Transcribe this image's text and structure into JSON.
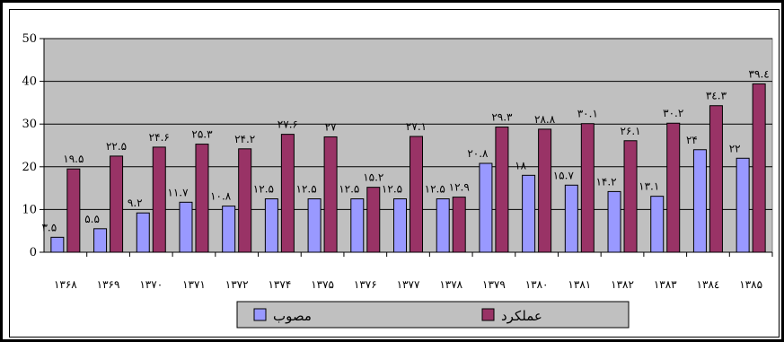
{
  "chart_data": {
    "type": "bar",
    "categories": [
      "۱۳۶۸",
      "۱۳۶۹",
      "۱۳۷۰",
      "۱۳۷۱",
      "۱۳۷۲",
      "۱۳۷۴",
      "۱۳۷۵",
      "۱۳۷۶",
      "۱۳۷۷",
      "۱۳۷۸",
      "۱۳۷۹",
      "۱۳۸۰",
      "۱۳۸۱",
      "۱۳۸۲",
      "۱۳۸۳",
      "۱۳۸٤",
      "۱۳۸۵"
    ],
    "series": [
      {
        "name": "مصوب",
        "color": "#9999ff",
        "values": [
          3.5,
          5.5,
          9.2,
          11.7,
          10.8,
          12.5,
          12.5,
          12.5,
          12.5,
          12.5,
          20.8,
          18,
          15.7,
          14.2,
          13.1,
          24,
          22
        ],
        "labels": [
          "۳.۵",
          "۵.۵",
          "۹.۲",
          "۱۱.۷",
          "۱۰.۸",
          "۱۲.۵",
          "۱۲.۵",
          "۱۲.۵",
          "۱۲.۵",
          "۱۲.۵",
          "۲۰.۸",
          "۱۸",
          "۱۵.۷",
          "۱۴.۲",
          "۱۳.۱",
          "۲۴",
          "۲۲"
        ]
      },
      {
        "name": "عملکرد",
        "color": "#993366",
        "values": [
          19.5,
          22.5,
          24.6,
          25.3,
          24.2,
          27.6,
          27,
          15.2,
          27.1,
          12.9,
          29.3,
          28.8,
          30.1,
          26.1,
          30.2,
          34.3,
          39.4
        ],
        "labels": [
          "۱۹.۵",
          "۲۲.۵",
          "۲۴.۶",
          "۲۵.۳",
          "۲۴.۲",
          "۲۷.۶",
          "۲۷",
          "۱۵.۲",
          "۲۷.۱",
          "۱۲.۹",
          "۲۹.۳",
          "۲۸.۸",
          "۳۰.۱",
          "۲۶.۱",
          "۳۰.۲",
          "۳٤.۳",
          "۳۹.٤"
        ]
      }
    ],
    "yticks": [
      "0",
      "10",
      "20",
      "30",
      "40",
      "50"
    ],
    "ylim": [
      0,
      50
    ],
    "grid": true,
    "legend": "bottom",
    "plot_bg": "#c0c0c0",
    "title": "",
    "xlabel": "",
    "ylabel": ""
  }
}
